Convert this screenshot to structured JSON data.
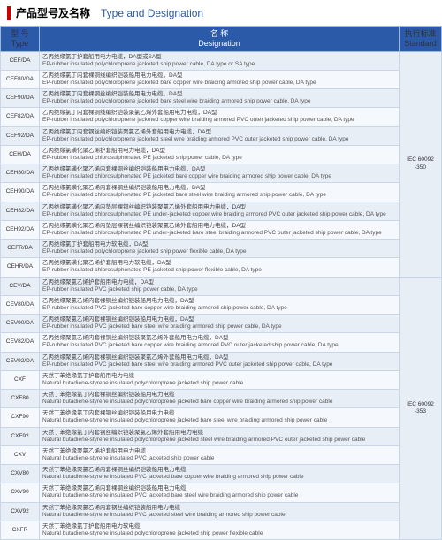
{
  "header": {
    "cn": "产品型号及名称",
    "en": "Type and Designation"
  },
  "columns": {
    "type": {
      "cn": "型 号",
      "en": "Type"
    },
    "desig": {
      "cn": "名 称",
      "en": "Designation"
    },
    "std": {
      "cn": "执行标准",
      "en": "Standard"
    }
  },
  "std1": "IEC 60092\n-350",
  "std2": "IEC 60092\n-353",
  "rows": [
    {
      "t": "CEF/DA",
      "cn": "乙丙绝缘氯丁护套船用电力电缆，DA型或SA型",
      "en": "EP-rubber insulated polychloroprene jacketed ship power cable, DA type or SA type"
    },
    {
      "t": "CEF80/DA",
      "cn": "乙丙绝缘氯丁内套裸铜线编织铠装船用电力电缆，DA型",
      "en": "EP-rubber insulated polychloroprene jacketed bare copper wire braiding armored ship power cable, DA type"
    },
    {
      "t": "CEF90/DA",
      "cn": "乙丙绝缘氯丁内套裸钢丝编织铠装船用电力电缆，DA型",
      "en": "EP-rubber insulated polychloroprene jacketed bare steel wire braiding armored ship power cable, DA type"
    },
    {
      "t": "CEF82/DA",
      "cn": "乙丙绝缘氯丁内套裸铜线编织铠装聚氯乙烯外套船用电力电缆，DA型",
      "en": "EP-rubber insulated polychloroprene jacketed copper wire braiding armored PVC outer jacketed ship power cable, DA type"
    },
    {
      "t": "CEF92/DA",
      "cn": "乙丙绝缘氯丁内套钢丝编织铠装聚氯乙烯外套船用电力电缆，DA型",
      "en": "EP-rubber insulated polychloroprene jacketed steel wire braiding armored PVC outer jacketed ship power cable, DA type"
    },
    {
      "t": "CEH/DA",
      "cn": "乙丙绝缘氯磺化聚乙烯护套船用电力电缆，DA型",
      "en": "EP-rubber insulated chlorosulphonated PE jacketed ship power cable, DA type"
    },
    {
      "t": "CEH80/DA",
      "cn": "乙丙绝缘氯磺化聚乙烯内套裸铜丝编织铠装船用电力电缆，DA型",
      "en": "EP-rubber insulated chlorosulphonated PE jacketed bare copper wire braiding armored ship power cable, DA type"
    },
    {
      "t": "CEH90/DA",
      "cn": "乙丙绝缘氯磺化聚乙烯内套裸钢丝编织铠装船用电力电缆，DA型",
      "en": "EP-rubber insulated chlorosulphonated PE jacketed bare steel wire braiding armored ship power cable, DA type"
    },
    {
      "t": "CEH82/DA",
      "cn": "乙丙绝缘氯磺化聚乙烯内垫层裸铜丝编织铠装聚氯乙烯外套船用电力电缆，DA型",
      "en": "EP-rubber insulated chlorosulphonated PE under-jacketed copper wire braiding armored PVC outer jacketed ship power cable, DA type"
    },
    {
      "t": "CEH92/DA",
      "cn": "乙丙绝缘氯磺化聚乙烯内垫层裸钢丝编织铠装聚氯乙烯外套船用电力电缆，DA型",
      "en": "EP-rubber insulated chlorosulphonated PE under-jacketed bare steel braiding armored PVC outer jacketed ship power cable, DA type"
    },
    {
      "t": "CEFR/DA",
      "cn": "乙丙绝缘氯丁护套船用电力软电缆，DA型",
      "en": "EP-rubber insulated polychloroprene jacketed ship power flexible cable, DA type"
    },
    {
      "t": "CEHR/DA",
      "cn": "乙丙绝缘氯磺化聚乙烯护套船用电力软电缆，DA型",
      "en": "EP-rubber insulated chlorosulphonated PE jacketed ship power flexible cable, DA type"
    },
    {
      "t": "CEV/DA",
      "cn": "乙丙绝缘聚氯乙烯护套船用电力电缆，DA型",
      "en": "EP-rubber insulated PVC jacketed ship power cable, DA type"
    },
    {
      "t": "CEV80/DA",
      "cn": "乙丙绝缘聚氯乙烯内套裸铜丝编织铠装船用电力电缆，DA型",
      "en": "EP-rubber insulated PVC jacketed bare copper wire braiding armored ship power cable, DA type"
    },
    {
      "t": "CEV90/DA",
      "cn": "乙丙绝缘聚氯乙烯内套裸钢丝编织铠装船用电力电缆，DA型",
      "en": "EP-rubber insulated PVC jacketed bare steel wire braiding armored ship power cable, DA type"
    },
    {
      "t": "CEV82/DA",
      "cn": "乙丙绝缘聚氯乙烯内套裸铜丝编织铠装聚氯乙烯外套船用电力电缆，DA型",
      "en": "EP-rubber insulated PVC jacketed bare copper wire braiding armored PVC outer jacketed ship power cable, DA type"
    },
    {
      "t": "CEV92/DA",
      "cn": "乙丙绝缘聚氯乙烯内套裸钢丝编织铠装聚氯乙烯外套船用电力电缆，DA型",
      "en": "EP-rubber insulated PVC jacketed bare steel wire braiding armored PVC outer jacketed ship power cable, DA type"
    },
    {
      "t": "CXF",
      "cn": "天然丁苯绝缘氯丁护套船用电力电缆",
      "en": "Natural butadiene-styrene insulated polychloroprene jacketed ship power cable"
    },
    {
      "t": "CXF80",
      "cn": "天然丁苯绝缘氯丁内套裸铜丝编织铠装船用电力电缆",
      "en": "Natural butadiene-styrene insulated polychloroprene jacketed bare copper wire braiding armored ship power cable"
    },
    {
      "t": "CXF90",
      "cn": "天然丁苯绝缘氯丁内套裸钢丝编织铠装船用电力电缆",
      "en": "Natural butadiene-styrene insulated polychloroprene jacketed bare steel wire braiding armored ship power cable"
    },
    {
      "t": "CXF92",
      "cn": "天然丁苯绝缘氯丁内套钢丝编织铠装聚氯乙烯外套船用电力电缆",
      "en": "Natural butadiene-styrene insulated polychloroprene jacketed steel wire braiding armored PVC outer jacketed ship power cable"
    },
    {
      "t": "CXV",
      "cn": "天然丁苯绝缘聚氯乙烯护套船用电力电缆",
      "en": "Natural butadiene-styrene insulated PVC jacketed ship power cable"
    },
    {
      "t": "CXV80",
      "cn": "天然丁苯绝缘聚氯乙烯内套裸铜丝编织铠装船用电力电缆",
      "en": "Natural butadiene-styrene insulated PVC jacketed bare copper wire braiding armored ship power cable"
    },
    {
      "t": "CXV90",
      "cn": "天然丁苯绝缘聚氯乙烯内套裸钢丝编织铠装船用电力电缆",
      "en": "Natural butadiene-styrene insulated PVC jacketed bare steel wire braiding armored ship power cable"
    },
    {
      "t": "CXV92",
      "cn": "天然丁苯绝缘聚氯乙烯内套钢丝编织铠装船用电力电缆",
      "en": "Natural butadiene-styrene insulated PVC jacketed steel wire braiding armored ship power cable"
    },
    {
      "t": "CXFR",
      "cn": "天然丁苯绝缘氯丁护套船用电力软电缆",
      "en": "Natural butadiene-styrene insulated polychloroprene jacketed ship power flexible cable"
    }
  ]
}
